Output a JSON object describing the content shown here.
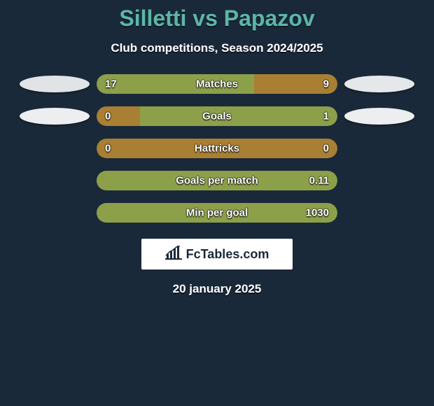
{
  "colors": {
    "background": "#1a2939",
    "title": "#5cb6a8",
    "player1": "#e0e4e7",
    "player2": "#e5e8ea",
    "text": "#ffffff"
  },
  "title": "Silletti vs Papazov",
  "subtitle": "Club competitions, Season 2024/2025",
  "date": "20 january 2025",
  "logo_text": "FcTables.com",
  "stats": [
    {
      "label": "Matches",
      "left_value": "17",
      "right_value": "9",
      "left_pct": 65.4,
      "right_pct": 34.6,
      "left_color": "#8ca04a",
      "right_color": "#a97f33",
      "show_left_ellipse": true,
      "left_ellipse_color": "#e0e4e7",
      "show_right_ellipse": true,
      "right_ellipse_color": "#e5e8ea"
    },
    {
      "label": "Goals",
      "left_value": "0",
      "right_value": "1",
      "left_pct": 18.0,
      "right_pct": 82.0,
      "left_color": "#a97f33",
      "right_color": "#8ca04a",
      "show_left_ellipse": true,
      "left_ellipse_color": "#eceef0",
      "show_right_ellipse": true,
      "right_ellipse_color": "#eceef0"
    },
    {
      "label": "Hattricks",
      "left_value": "0",
      "right_value": "0",
      "left_pct": 50.0,
      "right_pct": 50.0,
      "left_color": "#a97f33",
      "right_color": "#a97f33",
      "show_left_ellipse": false,
      "show_right_ellipse": false
    },
    {
      "label": "Goals per match",
      "left_value": "",
      "right_value": "0.11",
      "left_pct": 0.0,
      "right_pct": 100.0,
      "left_color": "#a97f33",
      "right_color": "#8ca04a",
      "show_left_ellipse": false,
      "show_right_ellipse": false
    },
    {
      "label": "Min per goal",
      "left_value": "",
      "right_value": "1030",
      "left_pct": 0.0,
      "right_pct": 100.0,
      "left_color": "#a97f33",
      "right_color": "#8ca04a",
      "show_left_ellipse": false,
      "show_right_ellipse": false
    }
  ]
}
